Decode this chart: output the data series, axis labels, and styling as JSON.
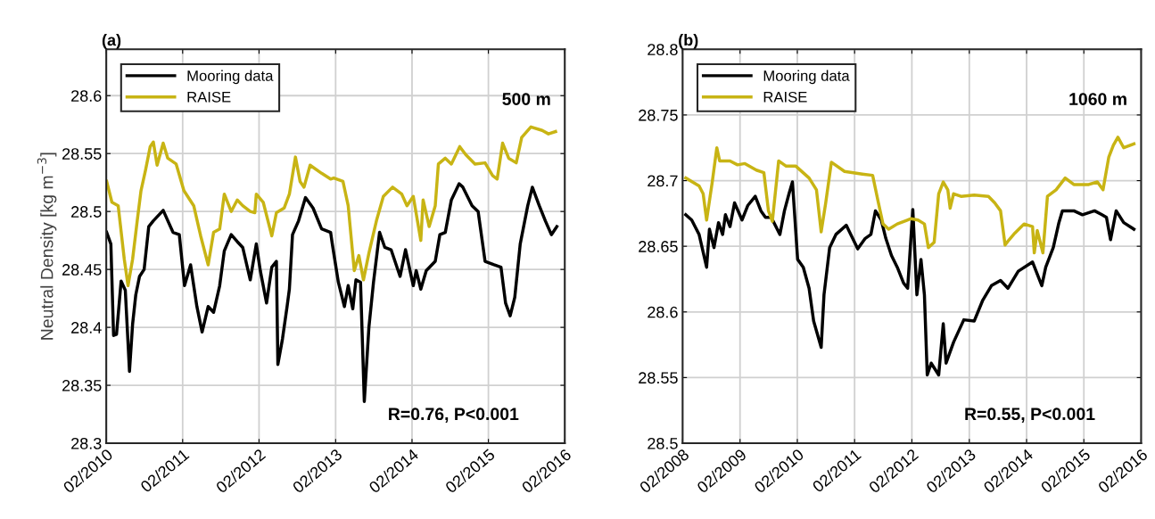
{
  "chart_data": [
    {
      "type": "line",
      "title": "(a)",
      "ylabel": "Neutral Density [kg m$^{−3}$]",
      "annotations": [
        "500 m",
        "R=0.76, P<0.001"
      ],
      "xlim": [
        "2010-02-01",
        "2016-02-01"
      ],
      "xticks": [
        {
          "value": "2010-02-01",
          "label": "02/2010"
        },
        {
          "value": "2011-02-01",
          "label": "02/2011"
        },
        {
          "value": "2012-02-01",
          "label": "02/2012"
        },
        {
          "value": "2013-02-01",
          "label": "02/2013"
        },
        {
          "value": "2014-02-01",
          "label": "02/2014"
        },
        {
          "value": "2015-02-01",
          "label": "02/2015"
        },
        {
          "value": "2016-02-01",
          "label": "02/2016"
        }
      ],
      "ylim": [
        28.3,
        28.64
      ],
      "yticks": [
        28.3,
        28.35,
        28.4,
        28.45,
        28.5,
        28.55,
        28.6
      ],
      "grid": true,
      "legend": "top left",
      "series": [
        {
          "name": "Mooring data",
          "color": "#000000",
          "x": [
            "2010-02-03",
            "2010-02-23",
            "2010-03-08",
            "2010-03-22",
            "2010-04-13",
            "2010-05-03",
            "2010-05-23",
            "2010-06-07",
            "2010-06-22",
            "2010-07-10",
            "2010-08-01",
            "2010-08-23",
            "2010-09-14",
            "2010-10-31",
            "2010-12-17",
            "2011-01-16",
            "2011-02-10",
            "2011-03-11",
            "2011-04-10",
            "2011-05-05",
            "2011-06-03",
            "2011-06-29",
            "2011-07-28",
            "2011-08-19",
            "2011-09-21",
            "2011-10-20",
            "2011-11-15",
            "2011-12-21",
            "2012-01-19",
            "2012-02-07",
            "2012-03-08",
            "2012-04-02",
            "2012-04-24",
            "2012-05-01",
            "2012-05-23",
            "2012-06-14",
            "2012-06-25",
            "2012-07-10",
            "2012-08-08",
            "2012-09-10",
            "2012-10-16",
            "2012-11-26",
            "2013-01-08",
            "2013-01-16",
            "2013-02-14",
            "2013-03-15",
            "2013-04-02",
            "2013-04-24",
            "2013-05-09",
            "2013-05-31",
            "2013-06-18",
            "2013-07-10",
            "2013-08-01",
            "2013-08-30",
            "2013-09-24",
            "2013-10-24",
            "2013-12-06",
            "2014-01-01",
            "2014-02-07",
            "2014-02-21",
            "2014-03-15",
            "2014-04-10",
            "2014-05-23",
            "2014-06-14",
            "2014-07-10",
            "2014-08-08",
            "2014-09-14",
            "2014-10-02",
            "2014-11-15",
            "2014-12-14",
            "2015-01-16",
            "2015-02-28",
            "2015-04-02",
            "2015-04-24",
            "2015-05-16",
            "2015-06-07",
            "2015-07-03",
            "2015-08-08",
            "2015-08-30",
            "2015-10-02",
            "2015-10-31",
            "2015-11-29",
            "2015-12-25"
          ],
          "values": [
            28.482,
            28.472,
            28.393,
            28.394,
            28.44,
            28.432,
            28.362,
            28.403,
            28.428,
            28.444,
            28.45,
            28.487,
            28.492,
            28.501,
            28.482,
            28.48,
            28.436,
            28.454,
            28.418,
            28.396,
            28.418,
            28.413,
            28.436,
            28.466,
            28.48,
            28.474,
            28.469,
            28.441,
            28.472,
            28.449,
            28.421,
            28.452,
            28.457,
            28.368,
            28.39,
            28.418,
            28.433,
            28.48,
            28.492,
            28.512,
            28.503,
            28.485,
            28.482,
            28.472,
            28.439,
            28.418,
            28.436,
            28.416,
            28.441,
            28.439,
            28.336,
            28.4,
            28.439,
            28.482,
            28.469,
            28.467,
            28.444,
            28.467,
            28.436,
            28.449,
            28.433,
            28.449,
            28.457,
            28.48,
            28.482,
            28.51,
            28.524,
            28.521,
            28.505,
            28.5,
            28.457,
            28.454,
            28.452,
            28.421,
            28.41,
            28.426,
            28.472,
            28.505,
            28.521,
            28.505,
            28.492,
            28.48,
            28.487
          ]
        },
        {
          "name": "RAISE",
          "color": "#c8b414",
          "x": [
            "2010-02-03",
            "2010-02-28",
            "2010-03-30",
            "2010-04-28",
            "2010-05-16",
            "2010-06-07",
            "2010-06-29",
            "2010-07-17",
            "2010-08-08",
            "2010-08-30",
            "2010-09-14",
            "2010-10-02",
            "2010-10-31",
            "2010-11-22",
            "2011-01-01",
            "2011-02-07",
            "2011-03-26",
            "2011-04-28",
            "2011-06-03",
            "2011-06-29",
            "2011-07-28",
            "2011-08-19",
            "2011-09-21",
            "2011-10-20",
            "2011-11-15",
            "2011-12-21",
            "2012-01-12",
            "2012-01-19",
            "2012-02-21",
            "2012-04-02",
            "2012-04-24",
            "2012-05-31",
            "2012-06-25",
            "2012-07-24",
            "2012-08-15",
            "2012-09-03",
            "2012-10-02",
            "2012-11-26",
            "2013-01-08",
            "2013-01-23",
            "2013-03-08",
            "2013-04-02",
            "2013-05-01",
            "2013-05-23",
            "2013-06-14",
            "2013-07-10",
            "2013-08-15",
            "2013-09-17",
            "2013-10-31",
            "2013-12-14",
            "2014-01-08",
            "2014-02-07",
            "2014-03-15",
            "2014-03-26",
            "2014-04-24",
            "2014-05-23",
            "2014-06-07",
            "2014-07-10",
            "2014-08-08",
            "2014-09-17",
            "2014-10-16",
            "2014-11-29",
            "2015-01-16",
            "2015-02-21",
            "2015-03-15",
            "2015-04-10",
            "2015-05-09",
            "2015-06-14",
            "2015-07-10",
            "2015-08-23",
            "2015-10-16",
            "2015-11-15",
            "2015-12-19"
          ],
          "values": [
            28.526,
            28.508,
            28.505,
            28.459,
            28.436,
            28.459,
            28.492,
            28.518,
            28.536,
            28.556,
            28.56,
            28.54,
            28.559,
            28.546,
            28.541,
            28.518,
            28.505,
            28.479,
            28.454,
            28.482,
            28.485,
            28.515,
            28.5,
            28.51,
            28.505,
            28.5,
            28.499,
            28.515,
            28.508,
            28.479,
            28.499,
            28.503,
            28.515,
            28.547,
            28.526,
            28.521,
            28.54,
            28.533,
            28.528,
            28.529,
            28.526,
            28.505,
            28.449,
            28.462,
            28.441,
            28.464,
            28.492,
            28.513,
            28.521,
            28.515,
            28.505,
            28.513,
            28.475,
            28.51,
            28.487,
            28.505,
            28.541,
            28.546,
            28.541,
            28.556,
            28.549,
            28.541,
            28.542,
            28.531,
            28.528,
            28.559,
            28.546,
            28.542,
            28.564,
            28.573,
            28.57,
            28.567,
            28.569
          ]
        }
      ]
    },
    {
      "type": "line",
      "title": "(b)",
      "annotations": [
        "1060 m",
        "R=0.55, P<0.001"
      ],
      "xlim": [
        "2008-02-01",
        "2016-02-01"
      ],
      "xticks": [
        {
          "value": "2008-02-01",
          "label": "02/2008"
        },
        {
          "value": "2009-02-01",
          "label": "02/2009"
        },
        {
          "value": "2010-02-01",
          "label": "02/2010"
        },
        {
          "value": "2011-02-01",
          "label": "02/2011"
        },
        {
          "value": "2012-02-01",
          "label": "02/2012"
        },
        {
          "value": "2013-02-01",
          "label": "02/2013"
        },
        {
          "value": "2014-02-01",
          "label": "02/2014"
        },
        {
          "value": "2015-02-01",
          "label": "02/2015"
        },
        {
          "value": "2016-02-01",
          "label": "02/2016"
        }
      ],
      "ylim": [
        28.5,
        28.8
      ],
      "yticks": [
        28.5,
        28.55,
        28.6,
        28.65,
        28.7,
        28.75,
        28.8
      ],
      "grid": true,
      "legend": "top left",
      "series": [
        {
          "name": "Mooring data",
          "color": "#000000",
          "x": [
            "2008-02-21",
            "2008-03-30",
            "2008-05-16",
            "2008-07-03",
            "2008-07-21",
            "2008-08-19",
            "2008-09-17",
            "2008-10-13",
            "2008-10-31",
            "2008-11-29",
            "2008-12-28",
            "2009-02-14",
            "2009-03-22",
            "2009-05-09",
            "2009-06-14",
            "2009-07-13",
            "2009-08-19",
            "2009-10-13",
            "2009-11-11",
            "2009-12-10",
            "2010-01-01",
            "2010-02-03",
            "2010-03-11",
            "2010-04-17",
            "2010-05-16",
            "2010-07-03",
            "2010-07-21",
            "2010-08-26",
            "2010-10-05",
            "2010-12-10",
            "2011-02-21",
            "2011-04-10",
            "2011-05-16",
            "2011-06-14",
            "2011-07-21",
            "2011-08-19",
            "2011-09-24",
            "2011-10-31",
            "2011-12-10",
            "2012-01-05",
            "2012-02-07",
            "2012-03-04",
            "2012-03-30",
            "2012-04-21",
            "2012-05-09",
            "2012-06-03",
            "2012-07-21",
            "2012-08-19",
            "2012-09-06",
            "2012-10-24",
            "2012-12-28",
            "2013-03-04",
            "2013-04-28",
            "2013-06-22",
            "2013-08-19",
            "2013-10-05",
            "2013-12-10",
            "2014-03-11",
            "2014-05-09",
            "2014-06-03",
            "2014-07-21",
            "2014-08-26",
            "2014-09-17",
            "2014-11-29",
            "2015-01-23",
            "2015-04-10",
            "2015-05-27",
            "2015-06-25",
            "2015-07-21",
            "2015-08-26",
            "2015-10-13",
            "2015-12-17"
          ],
          "values": [
            28.674,
            28.67,
            28.659,
            28.634,
            28.663,
            28.649,
            28.668,
            28.659,
            28.674,
            28.665,
            28.683,
            28.67,
            28.681,
            28.688,
            28.677,
            28.672,
            28.672,
            28.659,
            28.677,
            28.69,
            28.699,
            28.64,
            28.634,
            28.618,
            28.593,
            28.573,
            28.613,
            28.649,
            28.659,
            28.666,
            28.648,
            28.656,
            28.659,
            28.677,
            28.67,
            28.656,
            28.643,
            28.634,
            28.622,
            28.618,
            28.678,
            28.613,
            28.64,
            28.613,
            28.552,
            28.561,
            28.552,
            28.591,
            28.561,
            28.577,
            28.594,
            28.593,
            28.609,
            28.62,
            28.624,
            28.618,
            28.631,
            28.638,
            28.62,
            28.634,
            28.649,
            28.668,
            28.677,
            28.677,
            28.674,
            28.677,
            28.674,
            28.672,
            28.655,
            28.677,
            28.668,
            28.663
          ]
        },
        {
          "name": "RAISE",
          "color": "#c8b414",
          "x": [
            "2008-02-21",
            "2008-05-16",
            "2008-06-11",
            "2008-07-03",
            "2008-08-08",
            "2008-09-06",
            "2008-09-24",
            "2008-11-29",
            "2009-01-16",
            "2009-03-04",
            "2009-05-16",
            "2009-07-03",
            "2009-08-01",
            "2009-08-26",
            "2009-10-05",
            "2009-11-22",
            "2010-01-23",
            "2010-04-17",
            "2010-06-03",
            "2010-07-03",
            "2010-08-01",
            "2010-09-06",
            "2010-11-29",
            "2011-03-22",
            "2011-05-27",
            "2011-07-03",
            "2011-08-01",
            "2011-09-06",
            "2011-10-31",
            "2012-01-27",
            "2012-03-11",
            "2012-04-21",
            "2012-05-16",
            "2012-06-22",
            "2012-07-21",
            "2012-08-19",
            "2012-09-17",
            "2012-10-02",
            "2012-10-24",
            "2012-12-10",
            "2013-03-04",
            "2013-06-03",
            "2013-07-13",
            "2013-08-19",
            "2013-09-17",
            "2013-10-13",
            "2013-11-18",
            "2014-01-16",
            "2014-03-11",
            "2014-03-22",
            "2014-04-10",
            "2014-05-16",
            "2014-06-14",
            "2014-08-08",
            "2014-10-05",
            "2014-11-29",
            "2015-03-04",
            "2015-04-28",
            "2015-06-03",
            "2015-07-10",
            "2015-08-08",
            "2015-09-06",
            "2015-10-13",
            "2015-12-17"
          ],
          "values": [
            28.702,
            28.696,
            28.69,
            28.67,
            28.699,
            28.725,
            28.715,
            28.715,
            28.712,
            28.713,
            28.708,
            28.706,
            28.677,
            28.669,
            28.715,
            28.711,
            28.711,
            28.702,
            28.693,
            28.661,
            28.683,
            28.714,
            28.707,
            28.705,
            28.704,
            28.683,
            28.667,
            28.663,
            28.667,
            28.671,
            28.67,
            28.667,
            28.649,
            28.653,
            28.69,
            28.699,
            28.693,
            28.679,
            28.69,
            28.688,
            28.689,
            28.688,
            28.683,
            28.677,
            28.651,
            28.655,
            28.66,
            28.667,
            28.665,
            28.645,
            28.662,
            28.645,
            28.688,
            28.693,
            28.702,
            28.697,
            28.697,
            28.699,
            28.693,
            28.718,
            28.727,
            28.733,
            28.725,
            28.728
          ]
        }
      ]
    }
  ]
}
